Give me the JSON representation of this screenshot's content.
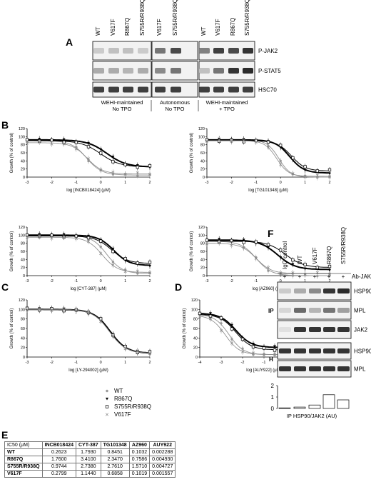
{
  "panels": {
    "A": "A",
    "B": "B",
    "C": "C",
    "D": "D",
    "E": "E",
    "F": "F"
  },
  "blot_a": {
    "lanes": [
      "WT",
      "V617F",
      "R867Q",
      "S755R/R938Q",
      "V617F",
      "S755R/R938Q",
      "WT",
      "V617F",
      "R867Q",
      "S755R/R938Q"
    ],
    "bands": [
      "P-JAK2",
      "P-STAT5",
      "HSC70"
    ],
    "groups": [
      {
        "line1": "WEHI-maintained",
        "line2": "No TPO"
      },
      {
        "line1": "Autonomous",
        "line2": "No TPO"
      },
      {
        "line1": "WEHI-maintained",
        "line2": "+ TPO"
      }
    ],
    "intensity": {
      "P-JAK2": [
        0.15,
        0.2,
        0.2,
        0.15,
        0.55,
        0.75,
        0.5,
        0.8,
        0.75,
        0.85
      ],
      "P-STAT5": [
        0.3,
        0.3,
        0.25,
        0.3,
        0.45,
        0.55,
        0.2,
        0.55,
        0.85,
        0.9
      ],
      "HSC70": [
        0.8,
        0.8,
        0.8,
        0.8,
        0.8,
        0.8,
        0.8,
        0.8,
        0.8,
        0.8
      ]
    }
  },
  "curves": {
    "ylabel": "Growth (% of control)",
    "yticks": [
      "0",
      "20",
      "40",
      "60",
      "80",
      "100",
      "120"
    ],
    "xticks": [
      "-3",
      "-2",
      "-1",
      "0",
      "1",
      "2"
    ],
    "xticks_d": [
      "-4",
      "-3",
      "-2",
      "-1",
      "0",
      "1",
      "2"
    ]
  },
  "chart_data": [
    {
      "type": "line",
      "id": "b1",
      "xlabel": "log [INCB018424] (μM)",
      "xlim": [
        -3,
        2
      ],
      "ylim": [
        0,
        120
      ],
      "series": [
        {
          "name": "WT",
          "ic50_log": -0.58,
          "hill": 1.4,
          "top": 90,
          "bottom": 5
        },
        {
          "name": "R867Q",
          "ic50_log": 0.25,
          "hill": 1.1,
          "top": 92,
          "bottom": 25
        },
        {
          "name": "S755R/R938Q",
          "ic50_log": 0.0,
          "hill": 1.1,
          "top": 90,
          "bottom": 25
        },
        {
          "name": "V617F",
          "ic50_log": -0.55,
          "hill": 1.4,
          "top": 85,
          "bottom": 8
        }
      ]
    },
    {
      "type": "line",
      "id": "b2",
      "xlabel": "log [TG101348] (μM)",
      "xlim": [
        -3,
        2
      ],
      "ylim": [
        0,
        120
      ],
      "series": [
        {
          "name": "WT",
          "ic50_log": -0.07,
          "hill": 1.8,
          "top": 92,
          "bottom": 0
        },
        {
          "name": "R867Q",
          "ic50_log": 0.37,
          "hill": 1.5,
          "top": 92,
          "bottom": 10
        },
        {
          "name": "S755R/R938Q",
          "ic50_log": 0.44,
          "hill": 1.5,
          "top": 90,
          "bottom": 15
        },
        {
          "name": "V617F",
          "ic50_log": -0.16,
          "hill": 1.8,
          "top": 90,
          "bottom": 2
        }
      ]
    },
    {
      "type": "line",
      "id": "b3",
      "xlabel": "log [CYT-387] (μM)",
      "xlim": [
        -3,
        2
      ],
      "ylim": [
        0,
        120
      ],
      "series": [
        {
          "name": "WT",
          "ic50_log": 0.25,
          "hill": 1.4,
          "top": 100,
          "bottom": 5
        },
        {
          "name": "R867Q",
          "ic50_log": 0.53,
          "hill": 1.4,
          "top": 100,
          "bottom": 25
        },
        {
          "name": "S755R/R938Q",
          "ic50_log": 0.44,
          "hill": 1.3,
          "top": 98,
          "bottom": 30
        },
        {
          "name": "V617F",
          "ic50_log": 0.06,
          "hill": 1.4,
          "top": 95,
          "bottom": 8
        }
      ]
    },
    {
      "type": "line",
      "id": "b4",
      "xlabel": "log [AZ960] (μM)",
      "xlim": [
        -3,
        2
      ],
      "ylim": [
        0,
        120
      ],
      "series": [
        {
          "name": "WT",
          "ic50_log": -0.99,
          "hill": 1.4,
          "top": 85,
          "bottom": 0
        },
        {
          "name": "R867Q",
          "ic50_log": -0.12,
          "hill": 1.2,
          "top": 88,
          "bottom": 15
        },
        {
          "name": "S755R/R938Q",
          "ic50_log": 0.2,
          "hill": 1.2,
          "top": 85,
          "bottom": 20
        },
        {
          "name": "V617F",
          "ic50_log": -0.99,
          "hill": 1.4,
          "top": 80,
          "bottom": 5
        }
      ]
    },
    {
      "type": "line",
      "id": "c",
      "xlabel": "log [LY-294002] (μM)",
      "xlim": [
        -3,
        2
      ],
      "ylim": [
        0,
        120
      ],
      "series": [
        {
          "name": "WT",
          "ic50_log": 0.35,
          "hill": 1.3,
          "top": 100,
          "bottom": 8
        },
        {
          "name": "R867Q",
          "ic50_log": 0.38,
          "hill": 1.3,
          "top": 100,
          "bottom": 8
        },
        {
          "name": "S755R/R938Q",
          "ic50_log": 0.4,
          "hill": 1.3,
          "top": 100,
          "bottom": 8
        },
        {
          "name": "V617F",
          "ic50_log": 0.35,
          "hill": 1.3,
          "top": 100,
          "bottom": 8
        }
      ]
    },
    {
      "type": "line",
      "id": "d",
      "xlabel": "log [AUY922] (μM)",
      "xlim": [
        -4,
        2
      ],
      "ylim": [
        0,
        120
      ],
      "series": [
        {
          "name": "WT",
          "ic50_log": -2.64,
          "hill": 1.3,
          "top": 90,
          "bottom": 5
        },
        {
          "name": "R867Q",
          "ic50_log": -2.31,
          "hill": 1.2,
          "top": 92,
          "bottom": 20
        },
        {
          "name": "S755R/R938Q",
          "ic50_log": -2.32,
          "hill": 1.2,
          "top": 90,
          "bottom": 15
        },
        {
          "name": "V617F",
          "ic50_log": -2.81,
          "hill": 1.3,
          "top": 88,
          "bottom": 5
        }
      ]
    },
    {
      "type": "bar",
      "id": "f",
      "xlabel": "IP HSP90/JAK2 (AU)",
      "ylim": [
        0,
        2
      ],
      "yticks": [
        "0",
        "1",
        "2"
      ],
      "categories": [
        "IgG control",
        "WT",
        "V617F",
        "R867Q",
        "S755R/R938Q"
      ],
      "values": [
        0.05,
        0.12,
        0.3,
        1.2,
        0.75
      ]
    }
  ],
  "legend": {
    "entries": [
      {
        "name": "WT",
        "marker": "●"
      },
      {
        "name": "R867Q",
        "marker": "▼"
      },
      {
        "name": "S755R/R938Q",
        "marker": "□"
      },
      {
        "name": "V617F",
        "marker": "×"
      }
    ]
  },
  "ic50_table": {
    "header": [
      "IC50 (μM)",
      "INCB018424",
      "CYT-387",
      "TG101348",
      "AZ960",
      "AUY922"
    ],
    "rows": [
      {
        "name": "WT",
        "values": [
          "0.2623",
          "1.7930",
          "0.8451",
          "0.1032",
          "0.002288"
        ]
      },
      {
        "name": "R867Q",
        "values": [
          "1.7600",
          "3.4100",
          "2.3470",
          "0.7586",
          "0.004930"
        ]
      },
      {
        "name": "S755R/R938Q",
        "values": [
          "0.9744",
          "2.7380",
          "2.7610",
          "1.5710",
          "0.004727"
        ]
      },
      {
        "name": "V617F",
        "values": [
          "0.2799",
          "1.1440",
          "0.6858",
          "0.1019",
          "0.001557"
        ]
      }
    ]
  },
  "blot_f": {
    "lanes": [
      "IgG control",
      "WT",
      "V617F",
      "R867Q",
      "S755R/R938Q"
    ],
    "plus": [
      "+",
      "+",
      "+",
      "+",
      "+"
    ],
    "antibody": "Ab-JAK2",
    "ip_label": "IP",
    "h_label": "H",
    "ip_bands": [
      "HSP90",
      "MPL",
      "JAK2"
    ],
    "h_bands": [
      "HSP90",
      "MPL"
    ],
    "intensity": {
      "ip_HSP90": [
        0.15,
        0.3,
        0.45,
        0.85,
        0.9
      ],
      "ip_MPL": [
        0.1,
        0.6,
        0.25,
        0.55,
        0.35
      ],
      "ip_JAK2": [
        0.05,
        0.85,
        0.85,
        0.85,
        0.85
      ],
      "h_HSP90": [
        0.85,
        0.85,
        0.85,
        0.85,
        0.85
      ],
      "h_MPL": [
        0.85,
        0.85,
        0.85,
        0.85,
        0.85
      ]
    }
  }
}
